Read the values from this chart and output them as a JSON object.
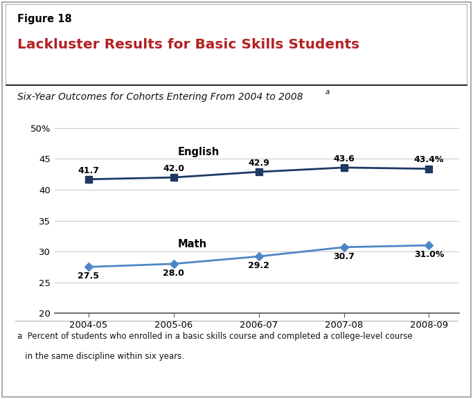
{
  "figure_label": "Figure 18",
  "title": "Lackluster Results for Basic Skills Students",
  "subtitle_text": "Six-Year Outcomes for Cohorts Entering From 2004 to 2008",
  "subtitle_sup": "a",
  "x_labels": [
    "2004-05",
    "2005-06",
    "2006-07",
    "2007-08",
    "2008-09"
  ],
  "x_values": [
    0,
    1,
    2,
    3,
    4
  ],
  "english_values": [
    41.7,
    42.0,
    42.9,
    43.6,
    43.4
  ],
  "math_values": [
    27.5,
    28.0,
    29.2,
    30.7,
    31.0
  ],
  "english_labels": [
    "41.7",
    "42.0",
    "42.9",
    "43.6",
    "43.4%"
  ],
  "math_labels": [
    "27.5",
    "28.0",
    "29.2",
    "30.7",
    "31.0%"
  ],
  "english_color": "#1F3864",
  "math_color": "#4E86C8",
  "ylim": [
    20,
    52
  ],
  "ytick_vals": [
    20,
    25,
    30,
    35,
    40,
    45,
    50
  ],
  "ytick_labels": [
    "20",
    "25",
    "30",
    "35",
    "40",
    "45",
    "50%"
  ],
  "background_color": "#FFFFFF",
  "grid_color": "#CCCCCC",
  "footnote_line1": "a  Percent of students who enrolled in a basic skills course and completed a college-level course",
  "footnote_line2": "   in the same discipline within six years.",
  "title_color": "#B22222",
  "figure_label_color": "#000000",
  "english_label": "English",
  "math_label": "Math",
  "outer_border_color": "#999999",
  "header_bottom_color": "#333333",
  "bottom_spine_color": "#555555"
}
